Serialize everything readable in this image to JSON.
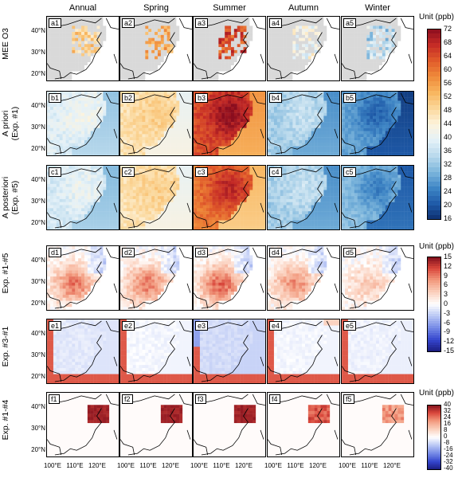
{
  "columns": [
    "Annual",
    "Spring",
    "Summer",
    "Autumn",
    "Winter"
  ],
  "rows": [
    {
      "label_lines": [
        "MEE O3"
      ],
      "prefix": "a",
      "type": "obs",
      "means": [
        0.52,
        0.6,
        0.78,
        0.38,
        0.28
      ]
    },
    {
      "label_lines": [
        "A priori",
        "(Exp. #1)"
      ],
      "prefix": "b",
      "type": "field",
      "means": [
        0.4,
        0.55,
        0.85,
        0.3,
        0.15
      ]
    },
    {
      "label_lines": [
        "A posteriori",
        "(Exp. #5)"
      ],
      "prefix": "c",
      "type": "field",
      "means": [
        0.38,
        0.55,
        0.78,
        0.3,
        0.2
      ]
    },
    {
      "label_lines": [
        "Exp. #1-#5"
      ],
      "prefix": "d",
      "type": "diff",
      "means": [
        0.75,
        0.75,
        0.78,
        0.72,
        0.62
      ]
    },
    {
      "label_lines": [
        "Exp. #3-#1"
      ],
      "prefix": "e",
      "type": "edge",
      "means": [
        0.45,
        0.48,
        0.42,
        0.48,
        0.47
      ]
    },
    {
      "label_lines": [
        "Exp. #1-#4"
      ],
      "prefix": "f",
      "type": "box",
      "means": [
        0.95,
        0.95,
        0.95,
        0.85,
        0.75
      ]
    }
  ],
  "lat_labels": [
    "40°N",
    "30°N",
    "20°N"
  ],
  "lon_labels": [
    "100°E",
    "110°E",
    "120°E"
  ],
  "colorbars": [
    {
      "title": "Unit (ppb)",
      "ticks": [
        "72",
        "68",
        "64",
        "60",
        "56",
        "52",
        "48",
        "44",
        "40",
        "36",
        "32",
        "28",
        "24",
        "20",
        "16"
      ],
      "palette": "sequential"
    },
    {
      "title": "Unit (ppb)",
      "ticks": [
        "15",
        "12",
        "9",
        "6",
        "3",
        "0",
        "-3",
        "-6",
        "-9",
        "-12",
        "-15"
      ],
      "palette": "diverging"
    },
    {
      "title": "Unit (ppb)",
      "ticks": [
        "40",
        "32",
        "24",
        "16",
        "8",
        "0",
        "-8",
        "-16",
        "-24",
        "-32",
        "-40"
      ],
      "palette": "diverging"
    }
  ],
  "chart_data": {
    "type": "heatmap",
    "title": "",
    "xlabel": "",
    "ylabel": "",
    "columns": [
      "Annual",
      "Spring",
      "Summer",
      "Autumn",
      "Winter"
    ],
    "row_labels": [
      "MEE O3",
      "A priori (Exp. #1)",
      "A posteriori (Exp. #5)",
      "Exp. #1-#5",
      "Exp. #3-#1",
      "Exp. #1-#4"
    ],
    "x_ticks": [
      "100°E",
      "110°E",
      "120°E"
    ],
    "y_ticks": [
      "40°N",
      "30°N",
      "20°N"
    ],
    "colorbar_ranges": [
      [
        16,
        72
      ],
      [
        -15,
        15
      ],
      [
        -40,
        40
      ]
    ],
    "colorbar_title": "Unit (ppb)"
  }
}
